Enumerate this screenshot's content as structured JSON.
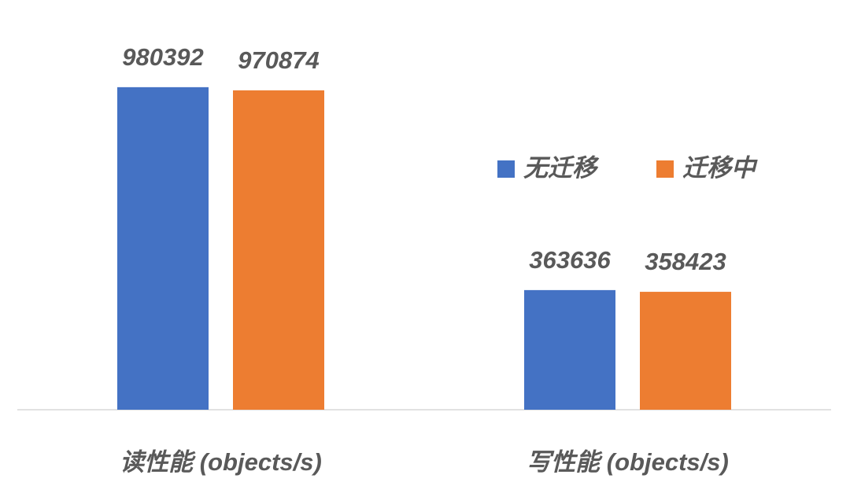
{
  "chart_data": {
    "type": "bar",
    "categories": [
      "读性能 (objects/s)",
      "写性能 (objects/s)"
    ],
    "series": [
      {
        "name": "无迁移",
        "color": "#4472c4",
        "values": [
          980392,
          363636
        ]
      },
      {
        "name": "迁移中",
        "color": "#ed7d31",
        "values": [
          970874,
          358423
        ]
      }
    ],
    "ylim": [
      0,
      1200000
    ]
  }
}
